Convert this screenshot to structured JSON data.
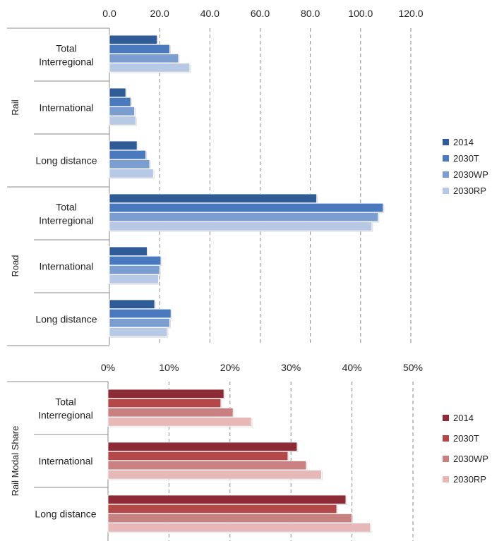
{
  "chart_data": [
    {
      "type": "bar",
      "orientation": "horizontal",
      "xlim": [
        0,
        120
      ],
      "ticks": [
        "0.0",
        "20.0",
        "40.0",
        "60.0",
        "80.0",
        "100.0",
        "120.0"
      ],
      "grid": true,
      "legend_position": "right",
      "groups": [
        {
          "name": "Rail",
          "categories": [
            "Total Interregional",
            "International",
            "Long distance"
          ]
        },
        {
          "name": "Road",
          "categories": [
            "Total Interregional",
            "International",
            "Long distance"
          ]
        }
      ],
      "series": [
        {
          "name": "2014",
          "color": "#2f5b96",
          "values": [
            19.0,
            6.5,
            11.0,
            82.5,
            15.0,
            18.0
          ]
        },
        {
          "name": "2030T",
          "color": "#4a79bd",
          "values": [
            24.0,
            8.5,
            14.5,
            109.0,
            20.5,
            24.5
          ]
        },
        {
          "name": "2030WP",
          "color": "#7b9dd0",
          "values": [
            27.5,
            10.0,
            16.0,
            107.0,
            20.0,
            24.0
          ]
        },
        {
          "name": "2030RP",
          "color": "#b8c9e6",
          "values": [
            32.0,
            10.5,
            17.5,
            104.5,
            19.5,
            23.0
          ]
        }
      ]
    },
    {
      "type": "bar",
      "orientation": "horizontal",
      "xlim": [
        0,
        50
      ],
      "ticks": [
        "0%",
        "10%",
        "20%",
        "30%",
        "40%",
        "50%"
      ],
      "grid": true,
      "legend_position": "right",
      "groups": [
        {
          "name": "Rail Modal Share",
          "categories": [
            "Total Interregional",
            "International",
            "Long distance"
          ]
        }
      ],
      "series": [
        {
          "name": "2014",
          "color": "#8c2b35",
          "values": [
            19.0,
            31.0,
            39.0
          ]
        },
        {
          "name": "2030T",
          "color": "#b24848",
          "values": [
            18.5,
            29.5,
            37.5
          ]
        },
        {
          "name": "2030WP",
          "color": "#c98080",
          "values": [
            20.5,
            32.5,
            40.0
          ]
        },
        {
          "name": "2030RP",
          "color": "#e6b8b8",
          "values": [
            23.5,
            35.0,
            43.0
          ]
        }
      ]
    }
  ]
}
